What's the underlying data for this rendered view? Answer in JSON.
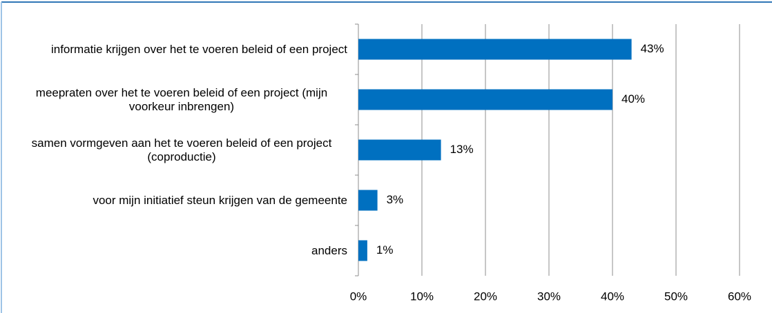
{
  "chart_data": {
    "type": "bar",
    "orientation": "horizontal",
    "categories": [
      "informatie krijgen over het te voeren beleid of een project",
      "meepraten over het te voeren beleid of een project (mijn voorkeur inbrengen)",
      "samen vormgeven aan het te voeren beleid of een project (coproductie)",
      "voor mijn initiatief steun krijgen van de gemeente",
      "anders"
    ],
    "values": [
      43,
      40,
      13,
      3,
      1.4
    ],
    "value_labels": [
      "43%",
      "40%",
      "13%",
      "3%",
      "1%"
    ],
    "color": "#0070c0",
    "xlim": [
      0,
      60
    ],
    "xticks": [
      {
        "value": 0,
        "label": "0%"
      },
      {
        "value": 10,
        "label": "10%"
      },
      {
        "value": 20,
        "label": "20%"
      },
      {
        "value": 30,
        "label": "30%"
      },
      {
        "value": 40,
        "label": "40%"
      },
      {
        "value": 50,
        "label": "50%"
      },
      {
        "value": 60,
        "label": "60%"
      }
    ],
    "grid": true
  }
}
